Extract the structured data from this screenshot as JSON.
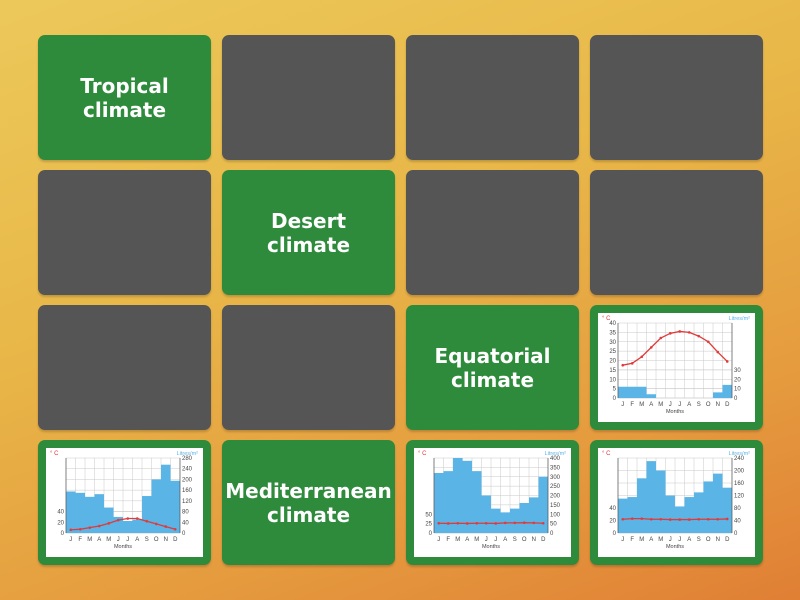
{
  "colors": {
    "card_green": "#2f8b3c",
    "card_hidden": "#555555",
    "bars": "#5ab4e5",
    "temperature": "#e03a3a"
  },
  "cards": [
    {
      "type": "text",
      "label": "Tropical climate"
    },
    {
      "type": "hidden"
    },
    {
      "type": "hidden"
    },
    {
      "type": "hidden"
    },
    {
      "type": "hidden"
    },
    {
      "type": "text",
      "label": "Desert climate"
    },
    {
      "type": "hidden"
    },
    {
      "type": "hidden"
    },
    {
      "type": "hidden"
    },
    {
      "type": "hidden"
    },
    {
      "type": "text",
      "label": "Equatorial climate"
    },
    {
      "type": "image",
      "chart": 0
    },
    {
      "type": "image",
      "chart": 1
    },
    {
      "type": "text",
      "label": "Mediterranean climate"
    },
    {
      "type": "image",
      "chart": 2
    },
    {
      "type": "image",
      "chart": 3
    }
  ],
  "chart_labels": {
    "temp_unit": "° C",
    "precip_unit": "Litres/m²",
    "xlabel": "Months",
    "months": [
      "J",
      "F",
      "M",
      "A",
      "M",
      "J",
      "J",
      "A",
      "S",
      "O",
      "N",
      "D"
    ]
  },
  "chart_data": [
    {
      "type": "bar+line",
      "temp_axis": [
        0,
        40
      ],
      "precip_axis": [
        0,
        80
      ],
      "temp_ticks": [
        0,
        5,
        10,
        15,
        20,
        25,
        30,
        35,
        40
      ],
      "precip_ticks": [
        0,
        10,
        20,
        30
      ],
      "precipitation": [
        12,
        12,
        12,
        4,
        0,
        0,
        0,
        0,
        0,
        0,
        6,
        14
      ],
      "temperature": [
        17.5,
        18.5,
        22,
        27,
        32,
        34.5,
        35.5,
        35,
        33,
        30,
        24.5,
        19.5
      ]
    },
    {
      "type": "bar+line",
      "temp_axis": [
        0,
        140
      ],
      "precip_axis": [
        0,
        280
      ],
      "temp_ticks": [
        0,
        20,
        40
      ],
      "precip_ticks": [
        0,
        40,
        80,
        120,
        160,
        200,
        240,
        280
      ],
      "precipitation": [
        155,
        150,
        135,
        145,
        95,
        60,
        45,
        50,
        138,
        200,
        255,
        195
      ],
      "temperature": [
        6,
        7,
        10,
        13,
        18,
        24,
        27,
        27,
        22,
        17,
        12,
        7
      ]
    },
    {
      "type": "bar+line",
      "temp_axis": [
        0,
        200
      ],
      "precip_axis": [
        0,
        400
      ],
      "temp_ticks": [
        0,
        25,
        50
      ],
      "precip_ticks": [
        0,
        50,
        100,
        150,
        200,
        250,
        300,
        350,
        400
      ],
      "precipitation": [
        320,
        330,
        400,
        385,
        330,
        200,
        130,
        110,
        130,
        160,
        190,
        300
      ],
      "temperature": [
        26,
        25.5,
        26,
        25.5,
        26,
        26,
        25.5,
        27,
        27,
        27.5,
        27,
        26
      ]
    },
    {
      "type": "bar+line",
      "temp_axis": [
        0,
        120
      ],
      "precip_axis": [
        0,
        240
      ],
      "temp_ticks": [
        0,
        20,
        40
      ],
      "precip_ticks": [
        0,
        40,
        80,
        120,
        160,
        200,
        240
      ],
      "precipitation": [
        110,
        115,
        175,
        230,
        200,
        120,
        85,
        115,
        130,
        165,
        190,
        145
      ],
      "temperature": [
        22,
        23,
        23,
        22,
        22,
        21.5,
        21.5,
        21.5,
        22,
        22,
        22,
        22.5
      ]
    }
  ]
}
